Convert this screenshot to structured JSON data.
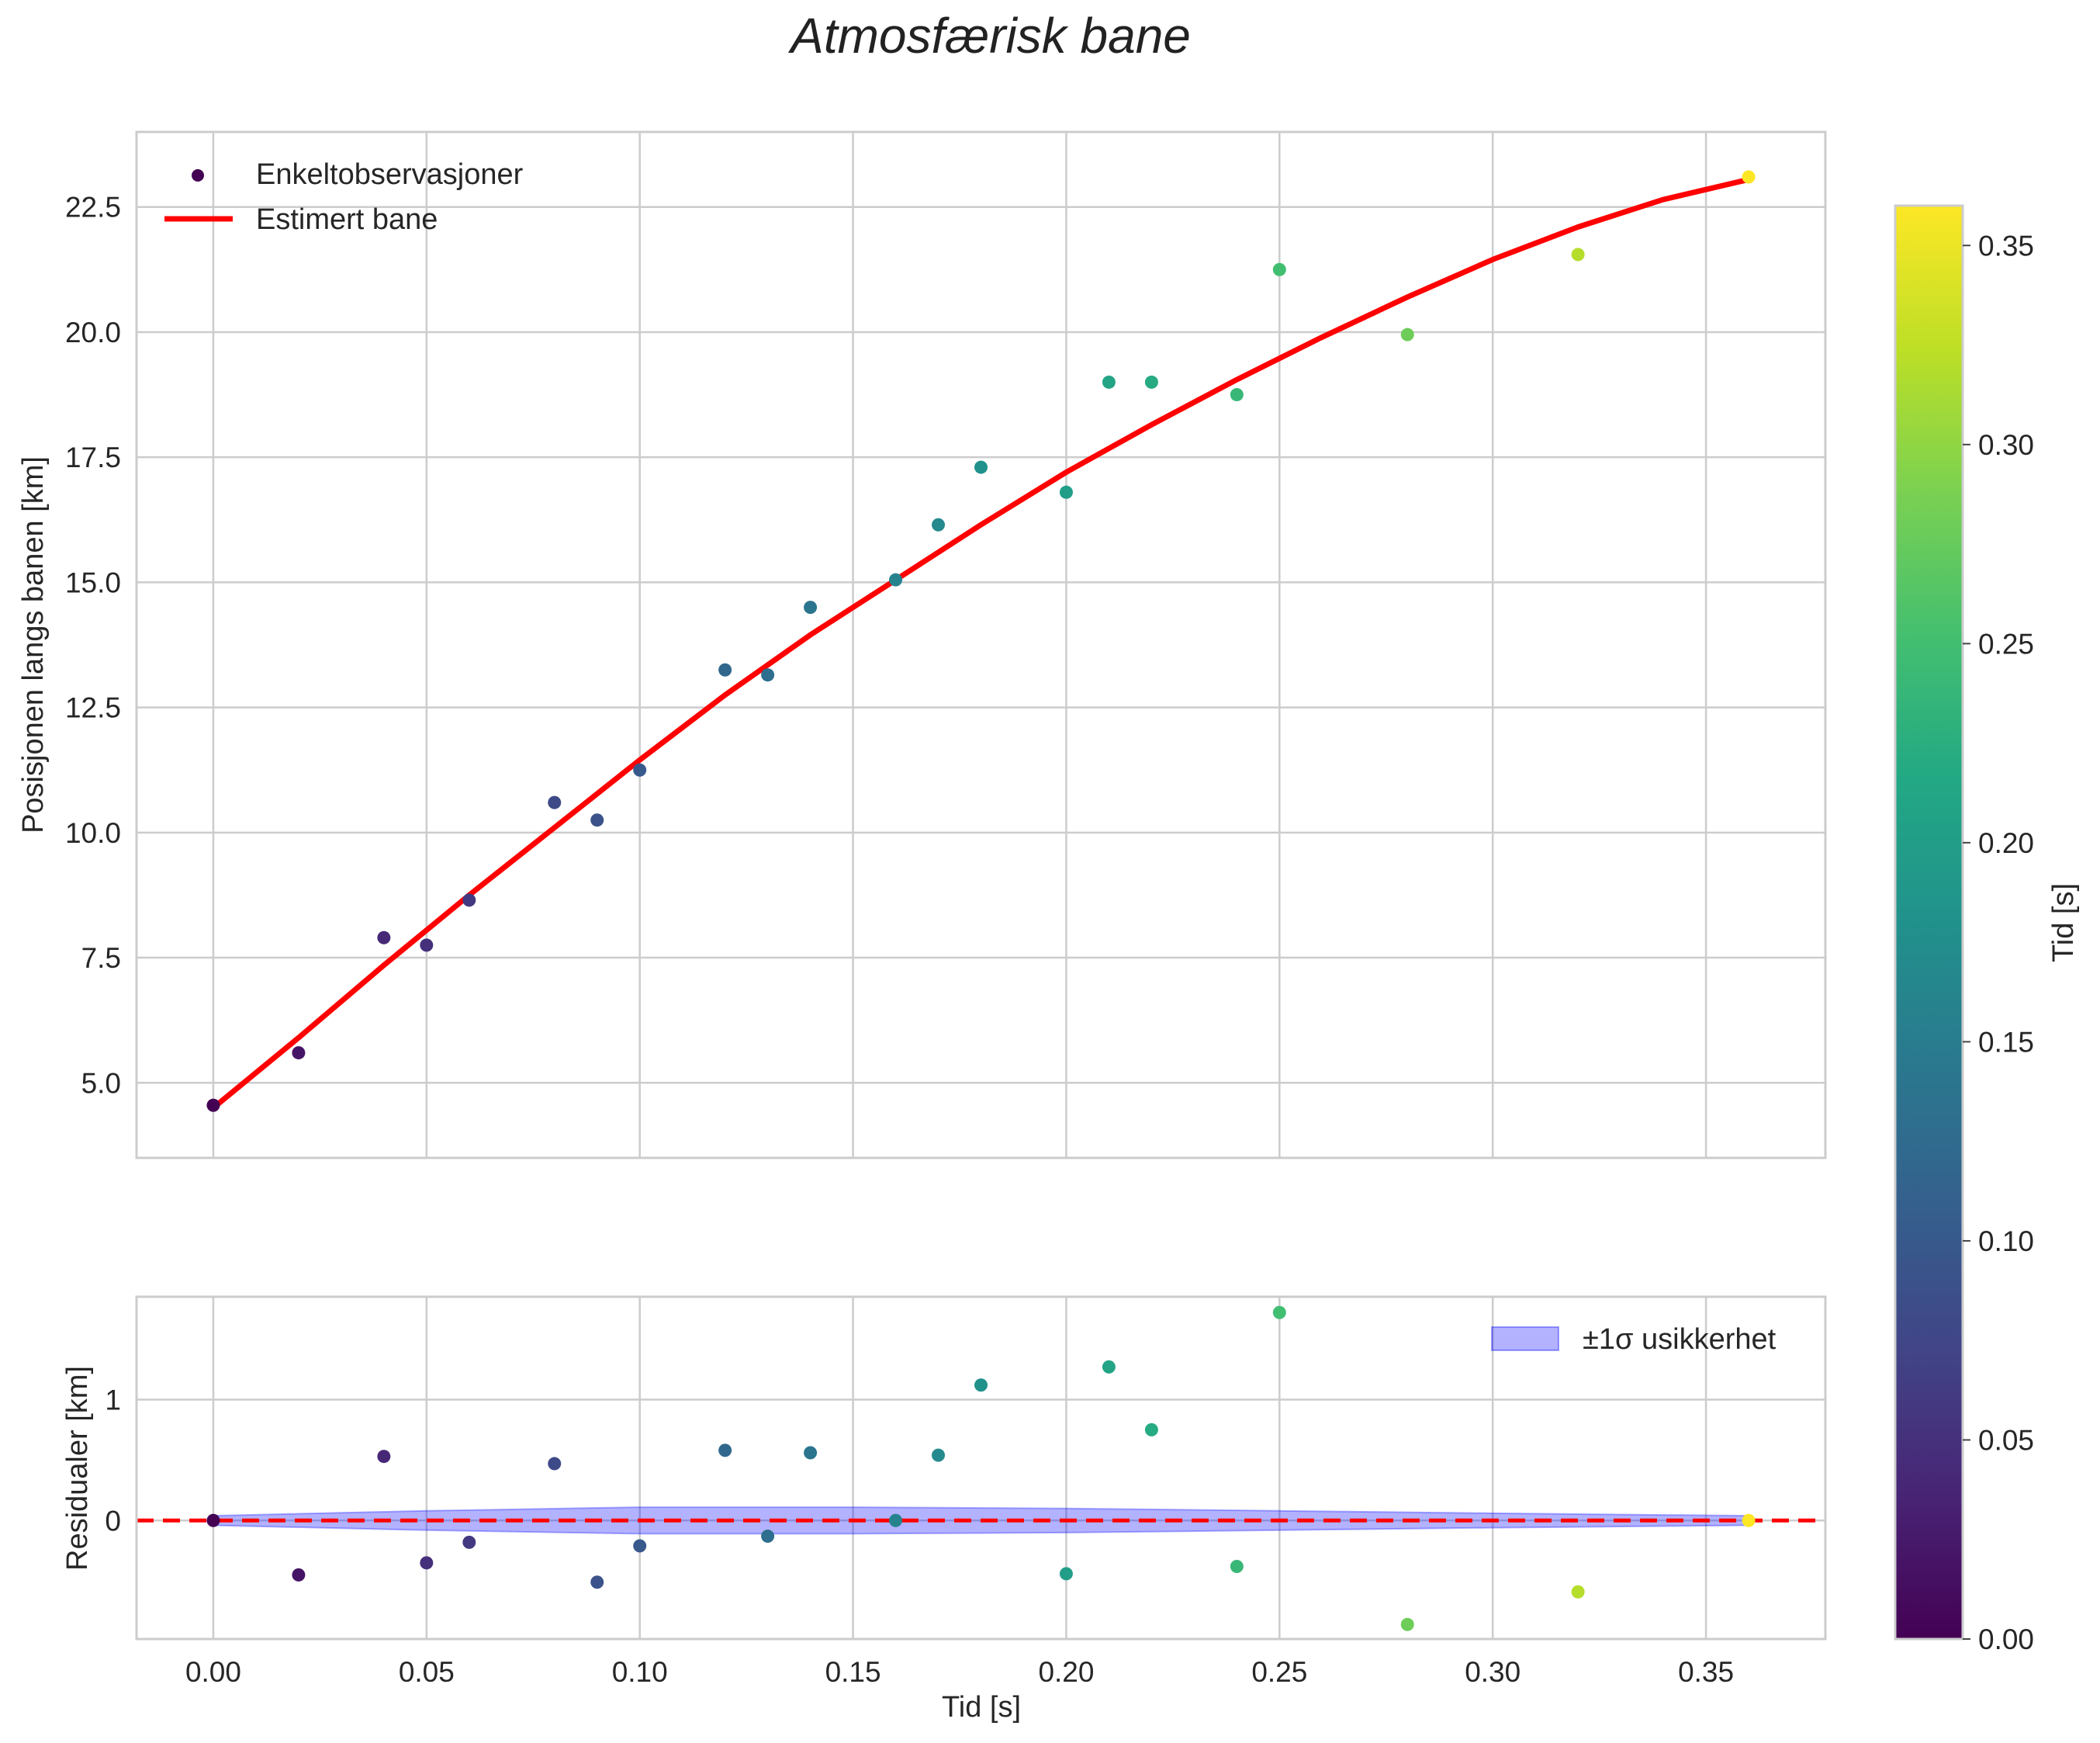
{
  "chart_data": {
    "title": "Atmosfærisk bane",
    "colormap": "viridis",
    "colors": {
      "fit_line": "#ff0000",
      "zero_line": "#ff0000",
      "uncertainty_fill": "#0000ff",
      "grid": "#cccccc",
      "axes_edge": "#cccccc",
      "text": "#262626"
    },
    "shared_xaxis": {
      "label": "Tid [s]",
      "range": [
        -0.018,
        0.378
      ],
      "ticks": [
        0.0,
        0.05,
        0.1,
        0.15,
        0.2,
        0.25,
        0.3,
        0.35
      ],
      "tick_labels": [
        "0.00",
        "0.05",
        "0.10",
        "0.15",
        "0.20",
        "0.25",
        "0.30",
        "0.35"
      ]
    },
    "panels": [
      {
        "id": "top",
        "type": "scatter+line",
        "ylabel": "Posisjonen langs banen [km]",
        "ylim": [
          3.5,
          24.0
        ],
        "yticks": [
          5.0,
          7.5,
          10.0,
          12.5,
          15.0,
          17.5,
          20.0,
          22.5
        ],
        "ytick_labels": [
          "5.0",
          "7.5",
          "10.0",
          "12.5",
          "15.0",
          "17.5",
          "20.0",
          "22.5"
        ],
        "grid": true,
        "legend_position": "top-left",
        "legend": [
          {
            "label": "Enkeltobservasjoner",
            "kind": "marker"
          },
          {
            "label": "Estimert bane",
            "kind": "line"
          }
        ],
        "scatter": {
          "name": "Enkeltobservasjoner",
          "x": [
            0.0,
            0.02,
            0.04,
            0.05,
            0.06,
            0.08,
            0.09,
            0.1,
            0.12,
            0.13,
            0.14,
            0.16,
            0.17,
            0.18,
            0.2,
            0.21,
            0.22,
            0.24,
            0.25,
            0.28,
            0.32,
            0.36
          ],
          "y": [
            4.55,
            5.6,
            7.9,
            7.75,
            8.65,
            10.6,
            10.25,
            11.25,
            13.25,
            13.15,
            14.5,
            15.05,
            16.15,
            17.3,
            16.8,
            19.0,
            19.0,
            18.75,
            21.25,
            19.95,
            21.55,
            23.1
          ]
        },
        "line": {
          "name": "Estimert bane",
          "x": [
            0.0,
            0.02,
            0.04,
            0.06,
            0.08,
            0.1,
            0.12,
            0.14,
            0.16,
            0.18,
            0.2,
            0.22,
            0.24,
            0.26,
            0.28,
            0.3,
            0.32,
            0.34,
            0.36
          ],
          "y": [
            4.5,
            5.9,
            7.35,
            8.75,
            10.1,
            11.45,
            12.75,
            13.95,
            15.05,
            16.15,
            17.2,
            18.15,
            19.05,
            19.9,
            20.7,
            21.45,
            22.1,
            22.65,
            23.05
          ]
        }
      },
      {
        "id": "bottom",
        "type": "scatter+band",
        "ylabel": "Residualer [km]",
        "ylim": [
          -0.98,
          1.85
        ],
        "yticks": [
          0,
          1
        ],
        "ytick_labels": [
          "0",
          "1"
        ],
        "grid": true,
        "legend_position": "top-right",
        "legend": [
          {
            "label": "±1σ usikkerhet",
            "kind": "patch"
          }
        ],
        "scatter": {
          "name": "Residualer",
          "x": [
            0.0,
            0.02,
            0.04,
            0.05,
            0.06,
            0.08,
            0.09,
            0.1,
            0.12,
            0.13,
            0.14,
            0.16,
            0.17,
            0.18,
            0.2,
            0.21,
            0.22,
            0.24,
            0.25,
            0.28,
            0.32,
            0.36
          ],
          "y": [
            0.0,
            -0.45,
            0.53,
            -0.35,
            -0.18,
            0.47,
            -0.51,
            -0.21,
            0.58,
            -0.13,
            0.56,
            0.0,
            0.54,
            1.12,
            -0.44,
            1.27,
            0.75,
            -0.38,
            1.72,
            -0.86,
            -0.59,
            0.0
          ]
        },
        "band": {
          "name": "±1σ usikkerhet",
          "x": [
            0.0,
            0.05,
            0.1,
            0.15,
            0.2,
            0.25,
            0.3,
            0.36
          ],
          "upper": [
            0.04,
            0.08,
            0.11,
            0.11,
            0.1,
            0.08,
            0.06,
            0.04
          ],
          "lower": [
            -0.04,
            -0.08,
            -0.11,
            -0.11,
            -0.1,
            -0.08,
            -0.06,
            -0.04
          ]
        },
        "reference_line": {
          "y": 0,
          "style": "dashed"
        }
      }
    ],
    "colorbar": {
      "label": "Tid [s]",
      "range": [
        0.0,
        0.36
      ],
      "ticks": [
        0.0,
        0.05,
        0.1,
        0.15,
        0.2,
        0.25,
        0.3,
        0.35
      ],
      "tick_labels": [
        "0.00",
        "0.05",
        "0.10",
        "0.15",
        "0.20",
        "0.25",
        "0.30",
        "0.35"
      ]
    }
  }
}
